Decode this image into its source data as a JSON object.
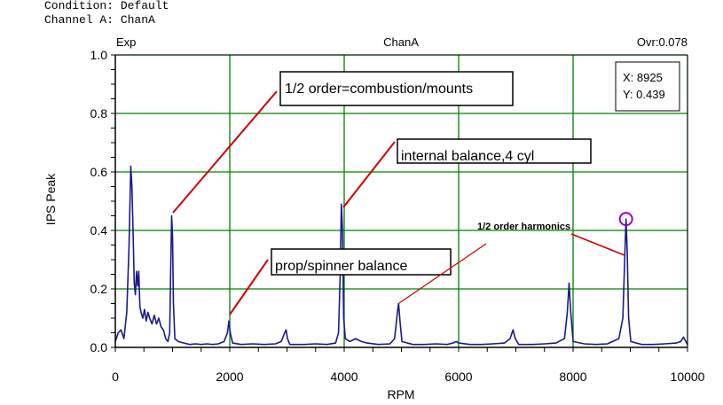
{
  "header": {
    "condition": "Condition: Default",
    "channel": "Channel A: ChanA"
  },
  "plot_header": {
    "left": "Exp",
    "center": "ChanA",
    "right": "Ovr:0.078"
  },
  "readout": {
    "x": "X: 8925",
    "y": "Y: 0.439"
  },
  "chart_data": {
    "type": "line",
    "xlabel": "RPM",
    "ylabel": "IPS Peak",
    "xlim": [
      0,
      10000
    ],
    "ylim": [
      0,
      1.0
    ],
    "x_ticks": [
      0,
      2000,
      4000,
      6000,
      8000,
      10000
    ],
    "y_ticks": [
      0.0,
      0.2,
      0.4,
      0.6,
      0.8,
      1.0
    ],
    "y_tick_labels": [
      "0.0",
      "0.2",
      "0.4",
      "0.6",
      "0.8",
      "1.0"
    ],
    "grid": true,
    "colors": {
      "line": "#1a1a8c",
      "grid": "#008000",
      "annotation": "#cc0000",
      "cursor": "#9900cc"
    },
    "cursor": {
      "x": 8925,
      "y": 0.439
    },
    "series": [
      {
        "points": [
          [
            0,
            0.02
          ],
          [
            50,
            0.05
          ],
          [
            100,
            0.06
          ],
          [
            150,
            0.03
          ],
          [
            200,
            0.12
          ],
          [
            240,
            0.35
          ],
          [
            270,
            0.62
          ],
          [
            290,
            0.55
          ],
          [
            310,
            0.4
          ],
          [
            330,
            0.22
          ],
          [
            350,
            0.18
          ],
          [
            370,
            0.26
          ],
          [
            390,
            0.21
          ],
          [
            410,
            0.26
          ],
          [
            430,
            0.14
          ],
          [
            450,
            0.12
          ],
          [
            480,
            0.1
          ],
          [
            510,
            0.13
          ],
          [
            540,
            0.09
          ],
          [
            570,
            0.12
          ],
          [
            600,
            0.1
          ],
          [
            640,
            0.08
          ],
          [
            680,
            0.11
          ],
          [
            720,
            0.08
          ],
          [
            760,
            0.1
          ],
          [
            800,
            0.07
          ],
          [
            840,
            0.06
          ],
          [
            880,
            0.03
          ],
          [
            920,
            0.02
          ],
          [
            950,
            0.05
          ],
          [
            970,
            0.3
          ],
          [
            985,
            0.45
          ],
          [
            1000,
            0.38
          ],
          [
            1015,
            0.15
          ],
          [
            1040,
            0.03
          ],
          [
            1100,
            0.02
          ],
          [
            1200,
            0.015
          ],
          [
            1300,
            0.01
          ],
          [
            1400,
            0.012
          ],
          [
            1500,
            0.01
          ],
          [
            1600,
            0.012
          ],
          [
            1700,
            0.01
          ],
          [
            1800,
            0.012
          ],
          [
            1900,
            0.02
          ],
          [
            1960,
            0.05
          ],
          [
            1985,
            0.09
          ],
          [
            2010,
            0.05
          ],
          [
            2050,
            0.015
          ],
          [
            2200,
            0.01
          ],
          [
            2400,
            0.012
          ],
          [
            2600,
            0.01
          ],
          [
            2800,
            0.012
          ],
          [
            2900,
            0.02
          ],
          [
            2960,
            0.05
          ],
          [
            2985,
            0.06
          ],
          [
            3010,
            0.03
          ],
          [
            3050,
            0.01
          ],
          [
            3300,
            0.01
          ],
          [
            3500,
            0.012
          ],
          [
            3700,
            0.01
          ],
          [
            3850,
            0.015
          ],
          [
            3900,
            0.05
          ],
          [
            3930,
            0.25
          ],
          [
            3950,
            0.49
          ],
          [
            3970,
            0.4
          ],
          [
            3990,
            0.1
          ],
          [
            4020,
            0.03
          ],
          [
            4100,
            0.02
          ],
          [
            4200,
            0.03
          ],
          [
            4300,
            0.02
          ],
          [
            4400,
            0.015
          ],
          [
            4600,
            0.01
          ],
          [
            4800,
            0.012
          ],
          [
            4880,
            0.03
          ],
          [
            4930,
            0.12
          ],
          [
            4950,
            0.15
          ],
          [
            4975,
            0.09
          ],
          [
            5010,
            0.02
          ],
          [
            5200,
            0.01
          ],
          [
            5400,
            0.01
          ],
          [
            5600,
            0.012
          ],
          [
            5800,
            0.01
          ],
          [
            5900,
            0.015
          ],
          [
            5960,
            0.02
          ],
          [
            6000,
            0.015
          ],
          [
            6200,
            0.01
          ],
          [
            6400,
            0.01
          ],
          [
            6600,
            0.012
          ],
          [
            6800,
            0.015
          ],
          [
            6900,
            0.03
          ],
          [
            6950,
            0.06
          ],
          [
            6990,
            0.03
          ],
          [
            7050,
            0.01
          ],
          [
            7300,
            0.01
          ],
          [
            7500,
            0.012
          ],
          [
            7700,
            0.015
          ],
          [
            7850,
            0.03
          ],
          [
            7900,
            0.12
          ],
          [
            7930,
            0.22
          ],
          [
            7960,
            0.12
          ],
          [
            8000,
            0.02
          ],
          [
            8200,
            0.012
          ],
          [
            8400,
            0.01
          ],
          [
            8600,
            0.012
          ],
          [
            8800,
            0.03
          ],
          [
            8870,
            0.1
          ],
          [
            8910,
            0.35
          ],
          [
            8925,
            0.439
          ],
          [
            8945,
            0.33
          ],
          [
            8970,
            0.1
          ],
          [
            9010,
            0.02
          ],
          [
            9200,
            0.01
          ],
          [
            9400,
            0.01
          ],
          [
            9600,
            0.012
          ],
          [
            9800,
            0.015
          ],
          [
            9880,
            0.02
          ],
          [
            9930,
            0.035
          ],
          [
            9970,
            0.02
          ],
          [
            10000,
            0.01
          ]
        ]
      }
    ],
    "annotations": [
      {
        "text": "1/2 order=combustion/mounts",
        "style": "box"
      },
      {
        "text": "internal balance,4 cyl",
        "style": "box"
      },
      {
        "text": "prop/spinner balance",
        "style": "box"
      },
      {
        "text": "1/2 order harmonics",
        "style": "plain"
      }
    ]
  }
}
